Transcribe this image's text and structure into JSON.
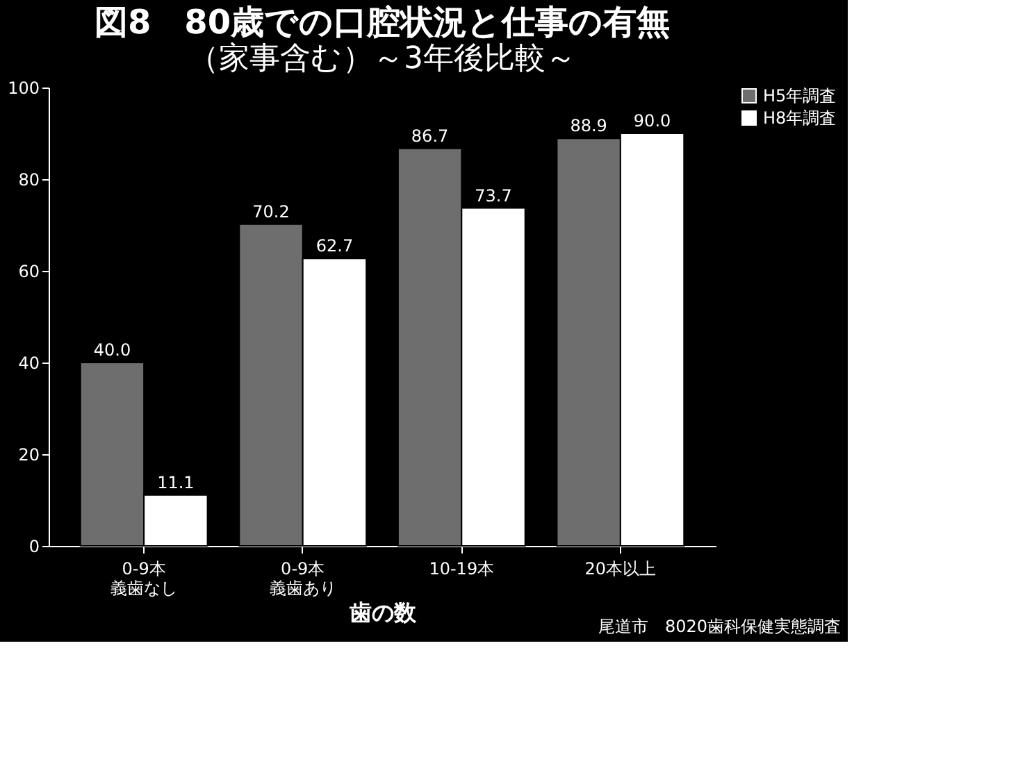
{
  "chart_data": {
    "type": "bar",
    "title": "図8　80歳での口腔状況と仕事の有無",
    "subtitle": "（家事含む）～3年後比較～",
    "xlabel": "歯の数",
    "categories": [
      "0-9本義歯なし",
      "0-9本義歯あり",
      "10-19本",
      "20本以上"
    ],
    "series": [
      {
        "name": "H5年調査",
        "color": "#6e6e6e",
        "values": [
          40.0,
          70.2,
          86.7,
          88.9
        ],
        "value_labels": [
          "40.0",
          "70.2",
          "86.7",
          "88.9"
        ]
      },
      {
        "name": "H8年調査",
        "color": "#ffffff",
        "values": [
          11.1,
          62.7,
          73.7,
          90.0
        ],
        "value_labels": [
          "11.1",
          "62.7",
          "73.7",
          "90.0"
        ]
      }
    ],
    "ylim": [
      0,
      100
    ],
    "yticks": [
      0,
      20,
      40,
      60,
      80,
      100
    ],
    "grid": false,
    "legend": "right",
    "annotations": [
      "尾道市　8020歯科保健実態調査"
    ]
  }
}
